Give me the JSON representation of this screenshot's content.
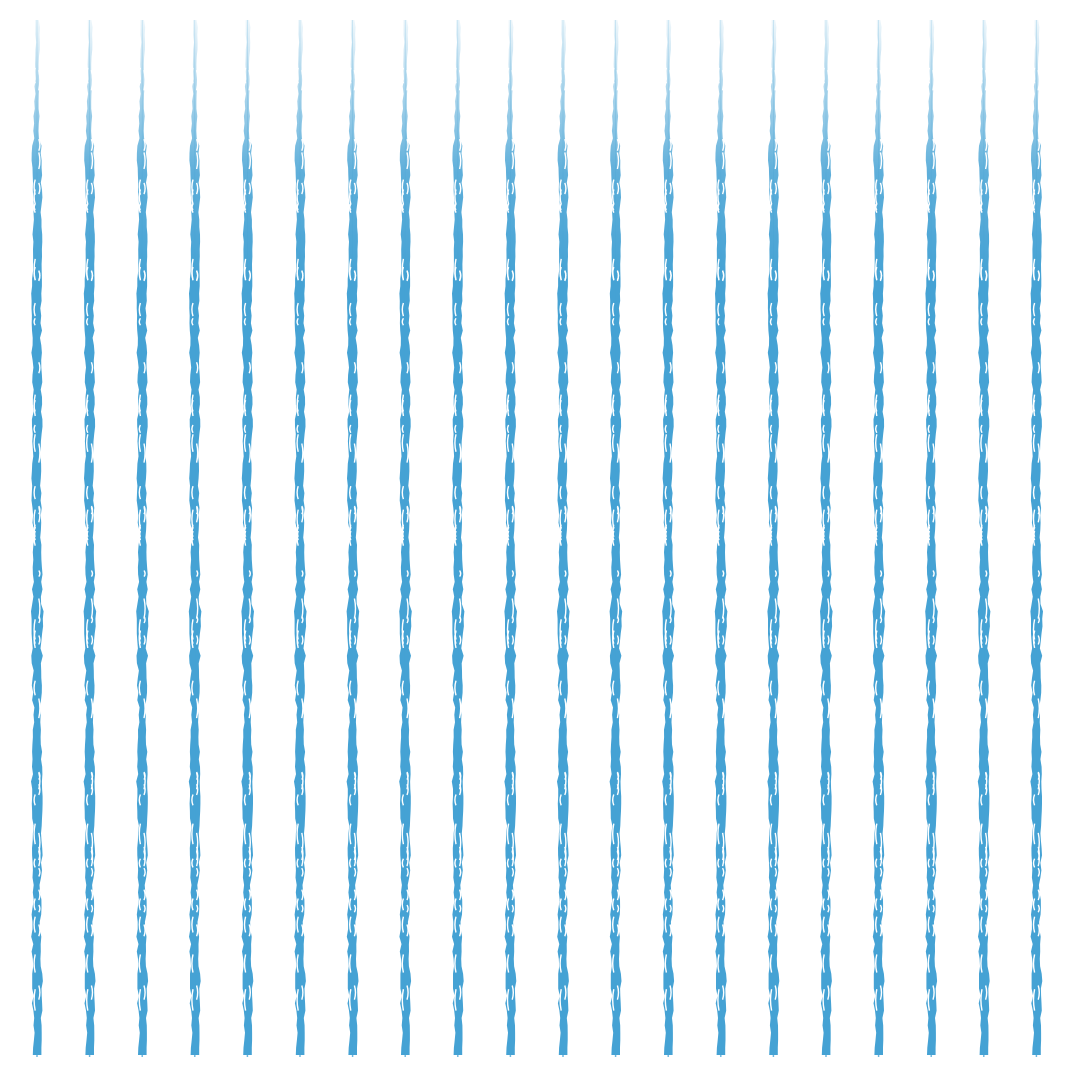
{
  "pattern": {
    "name": "vertical-brush-stripes",
    "stripe_count": 20,
    "colors": {
      "background": "#ffffff",
      "stroke": "#45a2d4"
    }
  }
}
